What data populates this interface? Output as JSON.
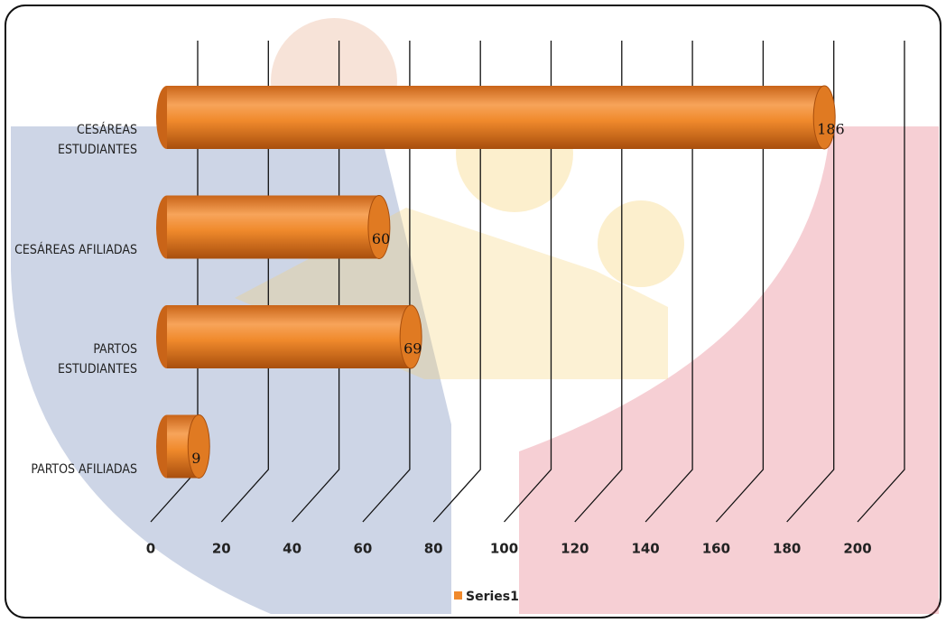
{
  "chart_data": {
    "type": "bar",
    "orientation": "horizontal",
    "categories": [
      "CESÁREAS ESTUDIANTES",
      "CESÁREAS AFILIADAS",
      "PARTOS ESTUDIANTES",
      "PARTOS AFILIADAS"
    ],
    "series": [
      {
        "name": "Series1",
        "color": "#f0892c",
        "values": [
          186,
          60,
          69,
          9
        ]
      }
    ],
    "xlim": [
      0,
      200
    ],
    "xticks": [
      0,
      20,
      40,
      60,
      80,
      100,
      120,
      140,
      160,
      180,
      200
    ],
    "grid": true,
    "legend": "bottom"
  }
}
